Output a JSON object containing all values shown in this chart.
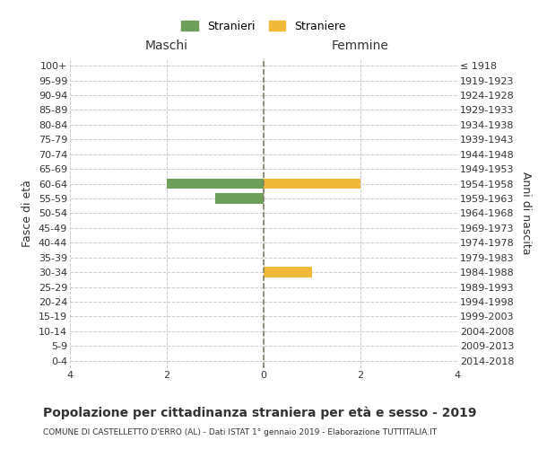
{
  "age_groups": [
    "100+",
    "95-99",
    "90-94",
    "85-89",
    "80-84",
    "75-79",
    "70-74",
    "65-69",
    "60-64",
    "55-59",
    "50-54",
    "45-49",
    "40-44",
    "35-39",
    "30-34",
    "25-29",
    "20-24",
    "15-19",
    "10-14",
    "5-9",
    "0-4"
  ],
  "birth_years": [
    "≤ 1918",
    "1919-1923",
    "1924-1928",
    "1929-1933",
    "1934-1938",
    "1939-1943",
    "1944-1948",
    "1949-1953",
    "1954-1958",
    "1959-1963",
    "1964-1968",
    "1969-1973",
    "1974-1978",
    "1979-1983",
    "1984-1988",
    "1989-1993",
    "1994-1998",
    "1999-2003",
    "2004-2008",
    "2009-2013",
    "2014-2018"
  ],
  "males": [
    0,
    0,
    0,
    0,
    0,
    0,
    0,
    0,
    2,
    1,
    0,
    0,
    0,
    0,
    0,
    0,
    0,
    0,
    0,
    0,
    0
  ],
  "females": [
    0,
    0,
    0,
    0,
    0,
    0,
    0,
    0,
    2,
    0,
    0,
    0,
    0,
    0,
    1,
    0,
    0,
    0,
    0,
    0,
    0
  ],
  "male_color": "#6d9e5a",
  "female_color": "#f0b93a",
  "male_label": "Stranieri",
  "female_label": "Straniere",
  "xlim": 4,
  "title": "Popolazione per cittadinanza straniera per età e sesso - 2019",
  "subtitle": "COMUNE DI CASTELLETTO D'ERRO (AL) - Dati ISTAT 1° gennaio 2019 - Elaborazione TUTTITALIA.IT",
  "left_header": "Maschi",
  "right_header": "Femmine",
  "ylabel_left": "Fasce di età",
  "ylabel_right": "Anni di nascita",
  "bar_height": 0.7,
  "grid_color": "#cccccc",
  "center_line_color": "#808060",
  "bg_color": "#ffffff",
  "text_color": "#333333"
}
